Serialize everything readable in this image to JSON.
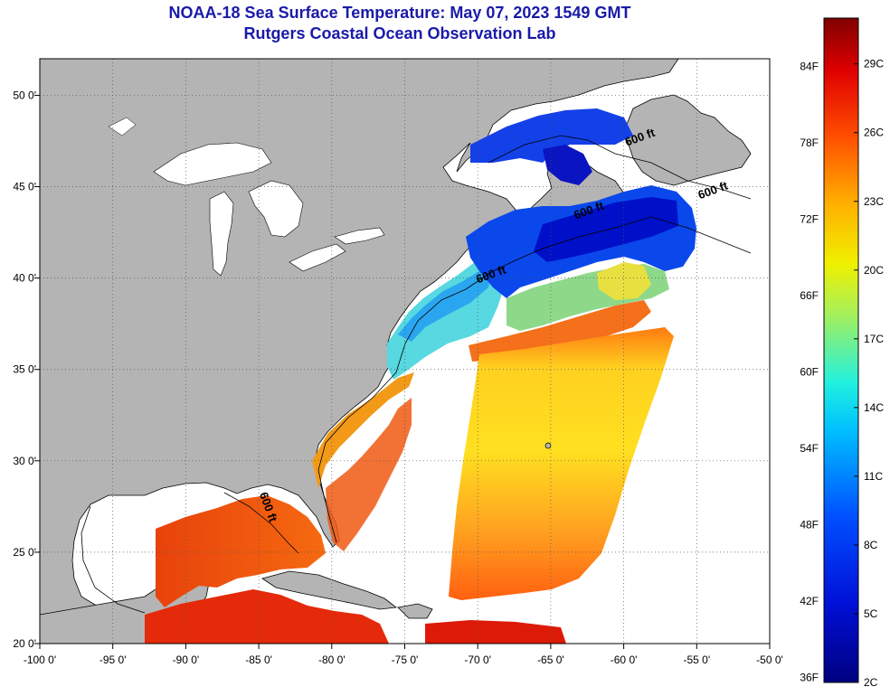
{
  "title": {
    "line1": "NOAA-18 Sea Surface Temperature:  May 07, 2023 1549 GMT",
    "line2": "Rutgers Coastal Ocean Observation Lab"
  },
  "map": {
    "lon_range": [
      -100,
      -50
    ],
    "lat_range": [
      20,
      52
    ],
    "x_ticks": [
      {
        "lon": -100,
        "label": "-100 0'"
      },
      {
        "lon": -95,
        "label": "-95 0'"
      },
      {
        "lon": -90,
        "label": "-90 0'"
      },
      {
        "lon": -85,
        "label": "-85 0'"
      },
      {
        "lon": -80,
        "label": "-80 0'"
      },
      {
        "lon": -75,
        "label": "-75 0'"
      },
      {
        "lon": -70,
        "label": "-70 0'"
      },
      {
        "lon": -65,
        "label": "-65 0'"
      },
      {
        "lon": -60,
        "label": "-60 0'"
      },
      {
        "lon": -55,
        "label": "-55 0'"
      },
      {
        "lon": -50,
        "label": "-50 0'"
      }
    ],
    "y_ticks": [
      {
        "lat": 20,
        "label": "20 0'"
      },
      {
        "lat": 25,
        "label": "25 0'"
      },
      {
        "lat": 30,
        "label": "30 0'"
      },
      {
        "lat": 35,
        "label": "35 0'"
      },
      {
        "lat": 40,
        "label": "40 0'"
      },
      {
        "lat": 45,
        "label": "45 0'"
      },
      {
        "lat": 50,
        "label": "50 0'"
      }
    ],
    "contour_labels": [
      {
        "text": "600 ft",
        "lon": -58.8,
        "lat": 47.5
      },
      {
        "text": "600 ft",
        "lon": -53.8,
        "lat": 44.6
      },
      {
        "text": "600 ft",
        "lon": -62.3,
        "lat": 43.5
      },
      {
        "text": "600 ft",
        "lon": -69.0,
        "lat": 40.0
      },
      {
        "text": "600 ft",
        "lon": -84.6,
        "lat": 27.4
      }
    ],
    "colors": {
      "land": "#b4b4b4",
      "lakes": "#ffffff",
      "no_data": "#ffffff",
      "grid": "#555555"
    }
  },
  "colorbar": {
    "min_c": 2,
    "max_c": 31,
    "fahrenheit_labels": [
      "84F",
      "78F",
      "72F",
      "66F",
      "60F",
      "54F",
      "48F",
      "42F",
      "36F"
    ],
    "celsius_labels": [
      "29C",
      "26C",
      "23C",
      "20C",
      "17C",
      "14C",
      "11C",
      "8C",
      "5C",
      "2C"
    ],
    "fahrenheit_values": [
      84,
      78,
      72,
      66,
      60,
      54,
      48,
      42,
      36
    ],
    "celsius_values": [
      29,
      26,
      23,
      20,
      17,
      14,
      11,
      8,
      5,
      2
    ]
  }
}
